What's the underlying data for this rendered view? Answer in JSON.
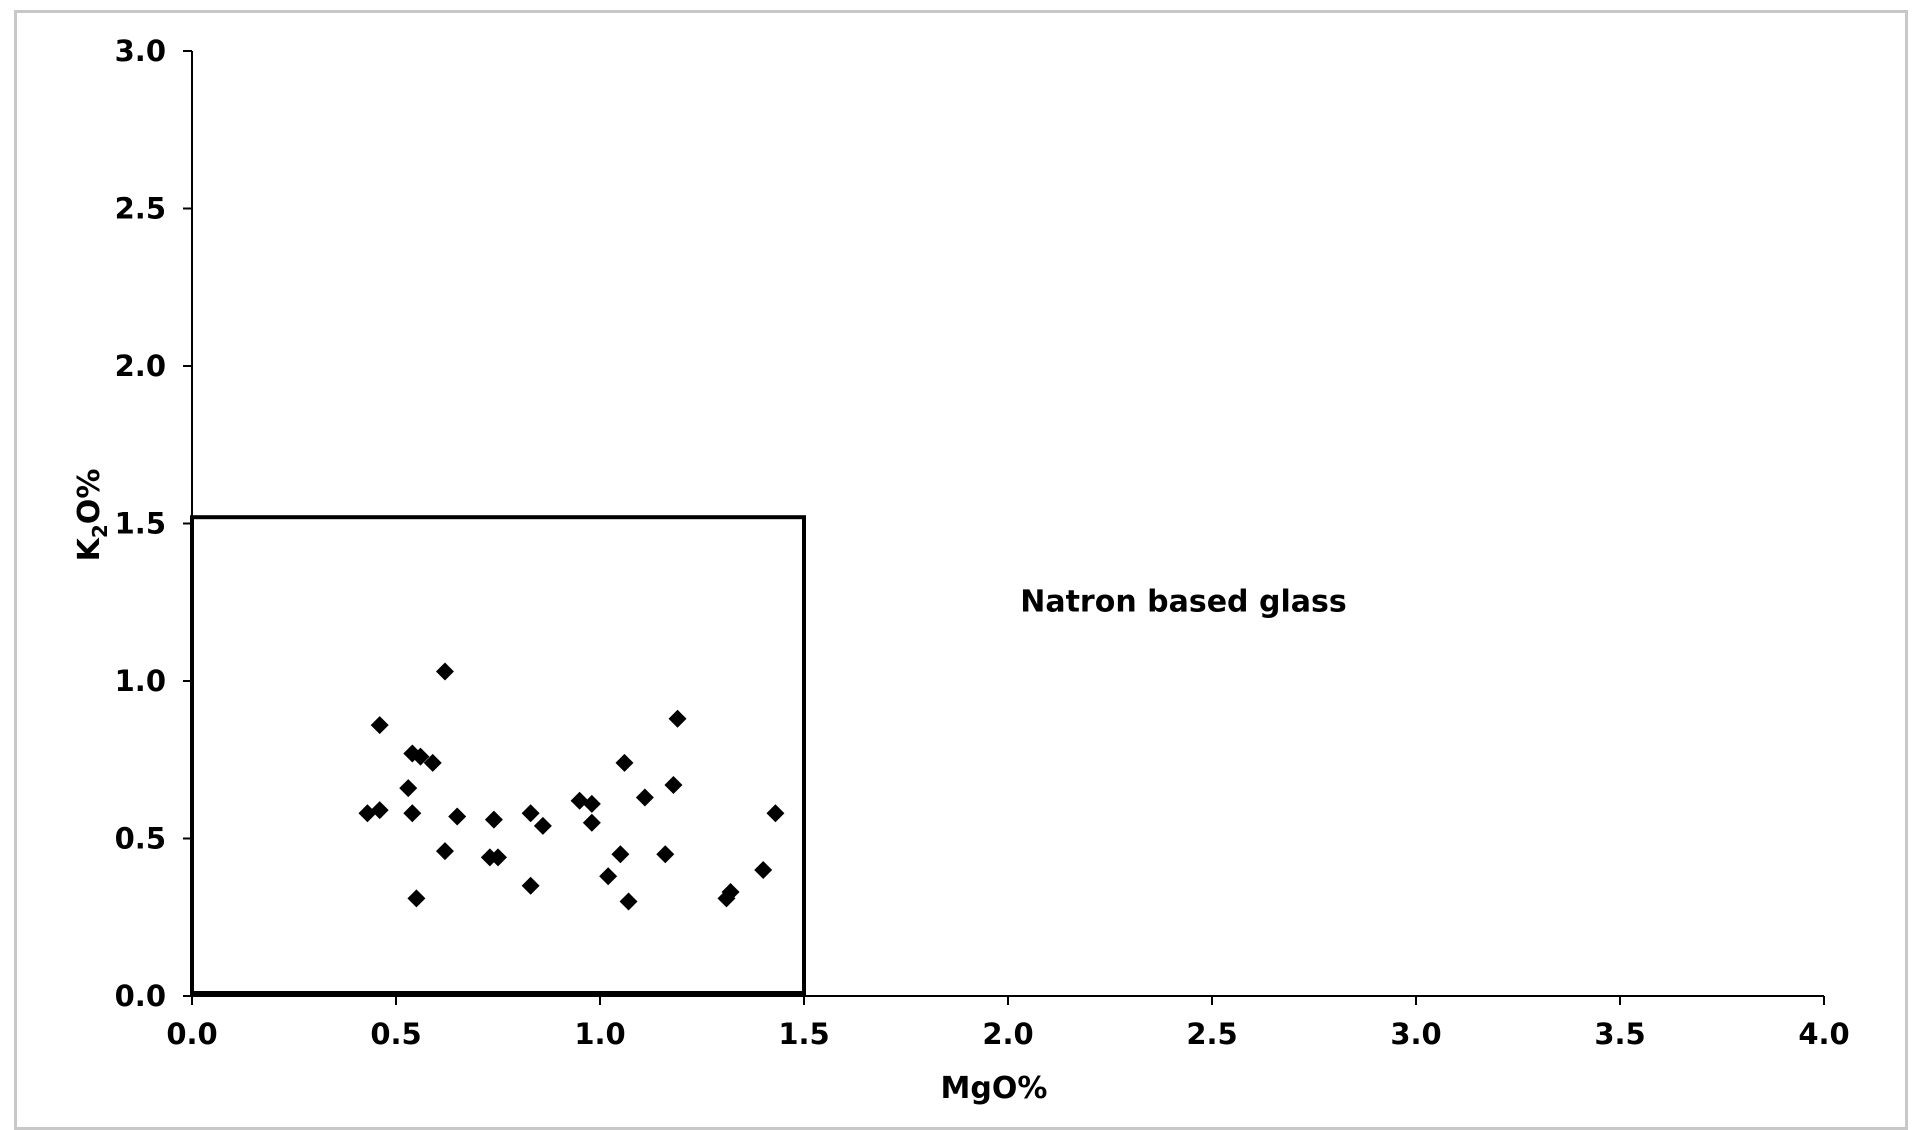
{
  "chart_data": {
    "type": "scatter",
    "xlabel": "MgO%",
    "ylabel": {
      "base": "K",
      "sub": "2",
      "rest": "O%"
    },
    "xlim": [
      0,
      4
    ],
    "ylim": [
      0,
      3
    ],
    "xticks": [
      "0.0",
      "0.5",
      "1.0",
      "1.5",
      "2.0",
      "2.5",
      "3.0",
      "3.5",
      "4.0"
    ],
    "yticks": [
      "0.0",
      "0.5",
      "1.0",
      "1.5",
      "2.0",
      "2.5",
      "3.0"
    ],
    "grid": false,
    "marker": "diamond",
    "marker_color": "#000000",
    "region": {
      "label": "Natron based glass",
      "x_range": [
        0,
        1.5
      ],
      "y_range": [
        0,
        1.52
      ]
    },
    "annotation": {
      "text": "Natron based glass",
      "x": 2.03,
      "y": 1.22
    },
    "series": [
      {
        "points": [
          [
            0.43,
            0.58
          ],
          [
            0.46,
            0.59
          ],
          [
            0.46,
            0.86
          ],
          [
            0.53,
            0.66
          ],
          [
            0.54,
            0.77
          ],
          [
            0.56,
            0.76
          ],
          [
            0.54,
            0.58
          ],
          [
            0.55,
            0.31
          ],
          [
            0.59,
            0.74
          ],
          [
            0.62,
            1.03
          ],
          [
            0.62,
            0.46
          ],
          [
            0.65,
            0.57
          ],
          [
            0.73,
            0.44
          ],
          [
            0.74,
            0.56
          ],
          [
            0.75,
            0.44
          ],
          [
            0.83,
            0.58
          ],
          [
            0.83,
            0.35
          ],
          [
            0.86,
            0.54
          ],
          [
            0.95,
            0.62
          ],
          [
            0.98,
            0.61
          ],
          [
            0.98,
            0.55
          ],
          [
            1.02,
            0.38
          ],
          [
            1.05,
            0.45
          ],
          [
            1.06,
            0.74
          ],
          [
            1.07,
            0.3
          ],
          [
            1.11,
            0.63
          ],
          [
            1.16,
            0.45
          ],
          [
            1.18,
            0.67
          ],
          [
            1.19,
            0.88
          ],
          [
            1.31,
            0.31
          ],
          [
            1.32,
            0.33
          ],
          [
            1.4,
            0.4
          ],
          [
            1.43,
            0.58
          ]
        ]
      }
    ]
  }
}
